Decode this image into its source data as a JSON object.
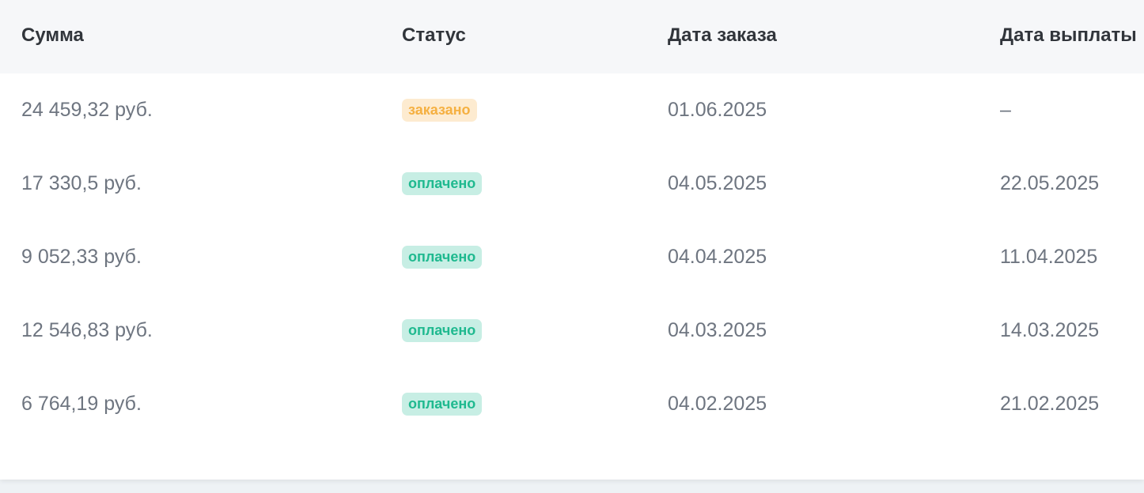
{
  "table": {
    "headers": [
      "Сумма",
      "Статус",
      "Дата заказа",
      "Дата выплаты"
    ],
    "rows": [
      {
        "amount": "24 459,32 руб.",
        "status": "заказано",
        "status_type": "ordered",
        "order_date": "01.06.2025",
        "payout_date": "–"
      },
      {
        "amount": "17 330,5 руб.",
        "status": "оплачено",
        "status_type": "paid",
        "order_date": "04.05.2025",
        "payout_date": "22.05.2025"
      },
      {
        "amount": "9 052,33 руб.",
        "status": "оплачено",
        "status_type": "paid",
        "order_date": "04.04.2025",
        "payout_date": "11.04.2025"
      },
      {
        "amount": "12 546,83 руб.",
        "status": "оплачено",
        "status_type": "paid",
        "order_date": "04.03.2025",
        "payout_date": "14.03.2025"
      },
      {
        "amount": "6 764,19 руб.",
        "status": "оплачено",
        "status_type": "paid",
        "order_date": "04.02.2025",
        "payout_date": "21.02.2025"
      }
    ]
  },
  "colors": {
    "ordered_bg": "#fdebd0",
    "ordered_text": "#f5b041",
    "paid_bg": "#c7eee4",
    "paid_text": "#1fb98f"
  }
}
